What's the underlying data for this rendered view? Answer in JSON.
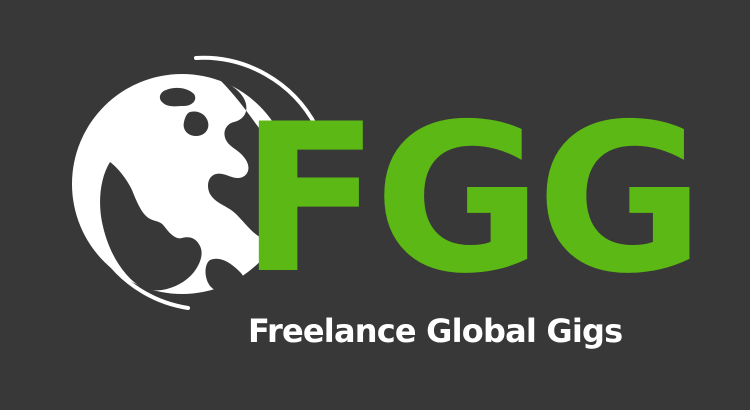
{
  "logo": {
    "acronym": "FGG",
    "tagline": "Freelance Global Gigs",
    "icon": "globe-icon",
    "colors": {
      "background": "#383838",
      "accent": "#5cb814",
      "text": "#ffffff"
    }
  }
}
